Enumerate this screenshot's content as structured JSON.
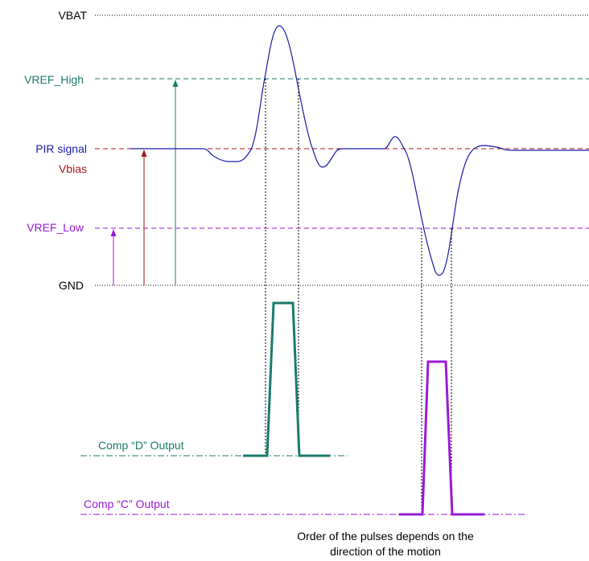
{
  "labels": {
    "vbat": "VBAT",
    "vref_high": "VREF_High",
    "pir_signal": "PIR signal",
    "vbias": "Vbias",
    "vref_low": "VREF_Low",
    "gnd": "GND",
    "comp_d": "Comp “D” Output",
    "comp_c": "Comp “C” Output"
  },
  "caption": {
    "line1": "Order of the pulses depends on the",
    "line2": "direction of the motion"
  },
  "colors": {
    "black": "#000000",
    "teal": "#1b7a6b",
    "navy": "#1a1aa6",
    "darkred": "#a01818",
    "purple": "#9a1ad6",
    "signal": "#1a1aa6"
  }
}
